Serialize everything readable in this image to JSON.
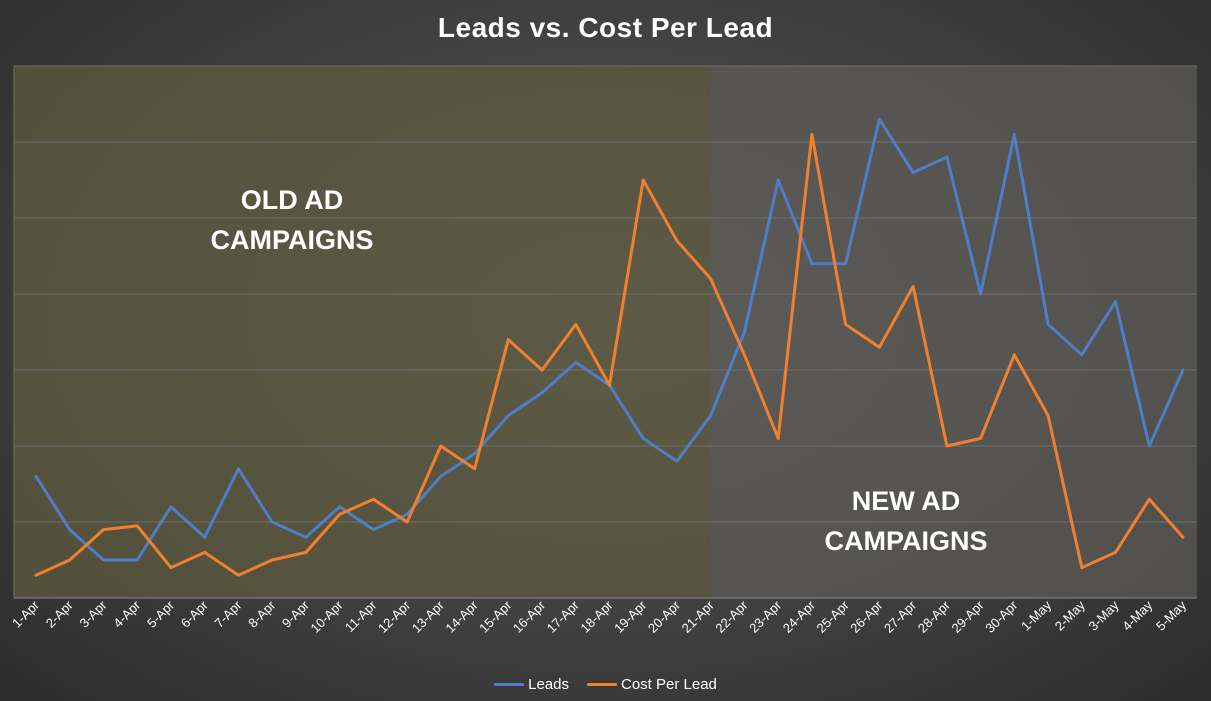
{
  "colors": {
    "leads": "#4f7dc6",
    "cost_per_lead": "#f0802f",
    "old_region": "#5d5b3f",
    "new_region": "#5f5d59",
    "grid": "#6e6e6e"
  },
  "chart_data": {
    "type": "line",
    "title": "Leads vs. Cost Per Lead",
    "xlabel": "",
    "ylabel": "",
    "categories": [
      "1-Apr",
      "2-Apr",
      "3-Apr",
      "4-Apr",
      "5-Apr",
      "6-Apr",
      "7-Apr",
      "8-Apr",
      "9-Apr",
      "10-Apr",
      "11-Apr",
      "12-Apr",
      "13-Apr",
      "14-Apr",
      "15-Apr",
      "16-Apr",
      "17-Apr",
      "18-Apr",
      "19-Apr",
      "20-Apr",
      "21-Apr",
      "22-Apr",
      "23-Apr",
      "24-Apr",
      "25-Apr",
      "26-Apr",
      "27-Apr",
      "28-Apr",
      "29-Apr",
      "30-Apr",
      "1-May",
      "2-May",
      "3-May",
      "4-May",
      "5-May"
    ],
    "ylim": [
      0,
      7
    ],
    "grid": true,
    "y_tick_labels_shown": false,
    "legend_position": "bottom",
    "series": [
      {
        "name": "Leads",
        "color": "#4f7dc6",
        "values": [
          1.6,
          0.9,
          0.5,
          0.5,
          1.2,
          0.8,
          1.7,
          1.0,
          0.8,
          1.2,
          0.9,
          1.1,
          1.6,
          1.9,
          2.4,
          2.7,
          3.1,
          2.8,
          2.1,
          1.8,
          2.4,
          3.5,
          5.5,
          4.4,
          4.4,
          6.3,
          5.6,
          5.8,
          4.0,
          6.1,
          3.6,
          3.2,
          3.9,
          2.0,
          3.0
        ]
      },
      {
        "name": "Cost Per Lead",
        "color": "#f0802f",
        "values": [
          0.3,
          0.5,
          0.9,
          0.95,
          0.4,
          0.6,
          0.3,
          0.5,
          0.6,
          1.1,
          1.3,
          1.0,
          2.0,
          1.7,
          3.4,
          3.0,
          3.6,
          2.8,
          5.5,
          4.7,
          4.2,
          3.2,
          2.1,
          6.1,
          3.6,
          3.3,
          4.1,
          2.0,
          2.1,
          3.2,
          2.4,
          0.4,
          0.6,
          1.3,
          0.8
        ]
      }
    ],
    "regions": [
      {
        "label_line1": "OLD AD",
        "label_line2": "CAMPAIGNS",
        "start_index": 0,
        "end_index": 20
      },
      {
        "label_line1": "NEW AD",
        "label_line2": "CAMPAIGNS",
        "start_index": 20,
        "end_index": 34
      }
    ]
  }
}
